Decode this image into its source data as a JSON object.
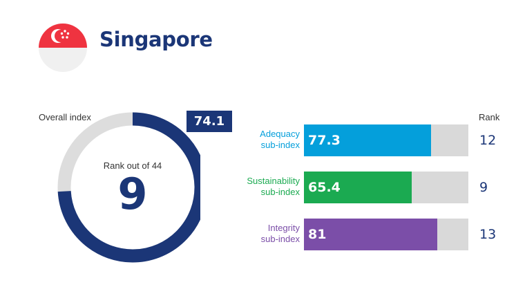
{
  "header": {
    "country": "Singapore",
    "flag_colors": {
      "top": "#ef3340",
      "bottom": "#f0f0f0",
      "emblem": "#ffffff"
    }
  },
  "overall": {
    "label": "Overall index",
    "score": "74.1",
    "rank_label": "Rank out of 44",
    "rank": "9"
  },
  "rank_header": "Rank",
  "chart_data": {
    "type": "bar",
    "orientation": "horizontal",
    "xlim": [
      0,
      100
    ],
    "overall_index": 74.1,
    "overall_rank": 9,
    "categories": [
      "Adequacy sub-index",
      "Sustainability sub-index",
      "Integrity sub-index"
    ],
    "values": [
      77.3,
      65.4,
      81
    ],
    "ranks": [
      12,
      9,
      13
    ],
    "colors": [
      "#049fdb",
      "#1baa51",
      "#7b4ea8"
    ]
  },
  "bars": [
    {
      "label_line1": "Adequacy",
      "label_line2": "sub-index",
      "value": "77.3",
      "rank": "12"
    },
    {
      "label_line1": "Sustainability",
      "label_line2": "sub-index",
      "value": "65.4",
      "rank": "9"
    },
    {
      "label_line1": "Integrity",
      "label_line2": "sub-index",
      "value": "81",
      "rank": "13"
    }
  ],
  "colors": {
    "navy": "#1b3677",
    "track": "#d9d9d9",
    "ring_track": "#dddddd"
  }
}
